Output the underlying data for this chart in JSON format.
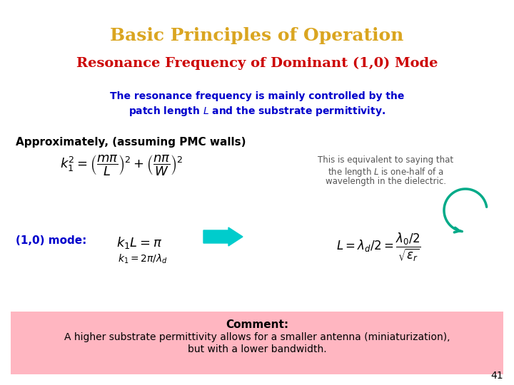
{
  "title": "Basic Principles of Operation",
  "title_color": "#DAA520",
  "subtitle": "Resonance Frequency of Dominant (1,0) Mode",
  "subtitle_color": "#CC0000",
  "body_line1": "The resonance frequency is mainly controlled by the",
  "body_line2": "patch length $L$ and the substrate permittivity.",
  "body_text_color": "#0000CC",
  "approx_text": "Approximately, (assuming PMC walls)",
  "approx_color": "#000000",
  "mode_label": "(1,0) mode:",
  "mode_color": "#0000CC",
  "side_note_line1": "This is equivalent to saying that",
  "side_note_line2": "the length $L$ is one-half of a",
  "side_note_line3": "wavelength in the dielectric.",
  "side_note_color": "#555555",
  "comment_bg": "#FFB6C1",
  "comment_title": "Comment:",
  "comment_body1": "A higher substrate permittivity allows for a smaller antenna (miniaturization),",
  "comment_body2": "but with a lower bandwidth.",
  "comment_color": "#000000",
  "page_number": "41",
  "bg_color": "#FFFFFF",
  "formula_color": "#000000",
  "arrow_color": "#00CCCC",
  "green_arrow_color": "#00AA88"
}
